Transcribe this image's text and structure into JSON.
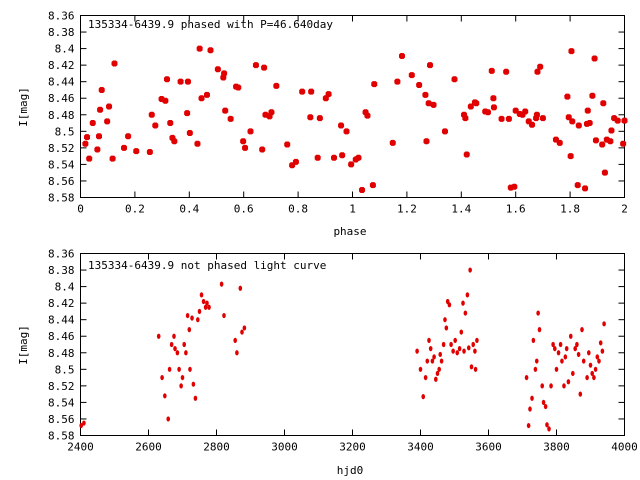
{
  "chart_data": [
    {
      "type": "scatter",
      "title": "135334-6439.9 phased with P=46.640day",
      "xlabel": "phase",
      "ylabel": "I[mag]",
      "xlim": [
        0,
        2
      ],
      "ylim": [
        8.58,
        8.36
      ],
      "y_inverted": true,
      "grid": false,
      "marker": "star",
      "color": "#e00000",
      "xticks": [
        "0",
        "0.2",
        "0.4",
        "0.6",
        "0.8",
        "1",
        "1.2",
        "1.4",
        "1.6",
        "1.8",
        "2"
      ],
      "yticks": [
        "8.36",
        "8.38",
        "8.4",
        "8.42",
        "8.44",
        "8.46",
        "8.48",
        "8.5",
        "8.52",
        "8.54",
        "8.56",
        "8.58"
      ],
      "points": [
        [
          0.018,
          8.515
        ],
        [
          0.024,
          8.507
        ],
        [
          0.032,
          8.533
        ],
        [
          0.045,
          8.49
        ],
        [
          0.062,
          8.522
        ],
        [
          0.068,
          8.506
        ],
        [
          0.072,
          8.474
        ],
        [
          0.078,
          8.45
        ],
        [
          0.098,
          8.488
        ],
        [
          0.105,
          8.47
        ],
        [
          0.118,
          8.533
        ],
        [
          0.125,
          8.418
        ],
        [
          0.16,
          8.52
        ],
        [
          0.175,
          8.506
        ],
        [
          0.205,
          8.524
        ],
        [
          0.255,
          8.525
        ],
        [
          0.262,
          8.48
        ],
        [
          0.275,
          8.493
        ],
        [
          0.298,
          8.461
        ],
        [
          0.312,
          8.463
        ],
        [
          0.318,
          8.437
        ],
        [
          0.33,
          8.49
        ],
        [
          0.338,
          8.508
        ],
        [
          0.345,
          8.512
        ],
        [
          0.368,
          8.44
        ],
        [
          0.395,
          8.44
        ],
        [
          0.392,
          8.478
        ],
        [
          0.402,
          8.502
        ],
        [
          0.43,
          8.515
        ],
        [
          0.438,
          8.4
        ],
        [
          0.445,
          8.46
        ],
        [
          0.465,
          8.456
        ],
        [
          0.478,
          8.402
        ],
        [
          0.505,
          8.425
        ],
        [
          0.525,
          8.435
        ],
        [
          0.532,
          8.475
        ],
        [
          0.528,
          8.43
        ],
        [
          0.552,
          8.485
        ],
        [
          0.572,
          8.446
        ],
        [
          0.58,
          8.447
        ],
        [
          0.598,
          8.512
        ],
        [
          0.605,
          8.52
        ],
        [
          0.625,
          8.5
        ],
        [
          0.645,
          8.42
        ],
        [
          0.668,
          8.522
        ],
        [
          0.675,
          8.423
        ],
        [
          0.68,
          8.48
        ],
        [
          0.695,
          8.482
        ],
        [
          0.702,
          8.477
        ],
        [
          0.72,
          8.445
        ],
        [
          0.76,
          8.516
        ],
        [
          0.778,
          8.541
        ],
        [
          0.792,
          8.537
        ],
        [
          0.815,
          8.452
        ],
        [
          0.845,
          8.483
        ],
        [
          0.848,
          8.452
        ],
        [
          0.872,
          8.532
        ],
        [
          0.88,
          8.484
        ],
        [
          0.902,
          8.46
        ],
        [
          0.912,
          8.455
        ],
        [
          0.932,
          8.532
        ],
        [
          0.958,
          8.493
        ],
        [
          0.962,
          8.529
        ],
        [
          0.978,
          8.5
        ],
        [
          0.995,
          8.54
        ],
        [
          1.012,
          8.534
        ],
        [
          1.022,
          8.532
        ],
        [
          1.035,
          8.571
        ],
        [
          1.048,
          8.477
        ],
        [
          1.055,
          8.481
        ],
        [
          1.075,
          8.565
        ],
        [
          1.08,
          8.443
        ],
        [
          1.148,
          8.514
        ],
        [
          1.165,
          8.44
        ],
        [
          1.182,
          8.409
        ],
        [
          1.218,
          8.432
        ],
        [
          1.245,
          8.444
        ],
        [
          1.268,
          8.456
        ],
        [
          1.272,
          8.512
        ],
        [
          1.28,
          8.466
        ],
        [
          1.285,
          8.42
        ],
        [
          1.298,
          8.468
        ],
        [
          1.34,
          8.5
        ],
        [
          1.375,
          8.437
        ],
        [
          1.41,
          8.48
        ],
        [
          1.415,
          8.484
        ],
        [
          1.42,
          8.528
        ],
        [
          1.435,
          8.47
        ],
        [
          1.45,
          8.465
        ],
        [
          1.455,
          8.466
        ],
        [
          1.488,
          8.476
        ],
        [
          1.498,
          8.477
        ],
        [
          1.512,
          8.427
        ],
        [
          1.518,
          8.46
        ],
        [
          1.52,
          8.471
        ],
        [
          1.548,
          8.485
        ],
        [
          1.565,
          8.428
        ],
        [
          1.575,
          8.485
        ],
        [
          1.582,
          8.568
        ],
        [
          1.595,
          8.567
        ],
        [
          1.6,
          8.475
        ],
        [
          1.615,
          8.479
        ],
        [
          1.625,
          8.48
        ],
        [
          1.635,
          8.476
        ],
        [
          1.648,
          8.488
        ],
        [
          1.66,
          8.492
        ],
        [
          1.675,
          8.484
        ],
        [
          1.678,
          8.48
        ],
        [
          1.68,
          8.428
        ],
        [
          1.69,
          8.422
        ],
        [
          1.7,
          8.484
        ],
        [
          1.748,
          8.51
        ],
        [
          1.762,
          8.514
        ],
        [
          1.79,
          8.458
        ],
        [
          1.795,
          8.483
        ],
        [
          1.802,
          8.53
        ],
        [
          1.805,
          8.403
        ],
        [
          1.808,
          8.488
        ],
        [
          1.828,
          8.565
        ],
        [
          1.832,
          8.493
        ],
        [
          1.855,
          8.569
        ],
        [
          1.862,
          8.491
        ],
        [
          1.865,
          8.475
        ],
        [
          1.872,
          8.49
        ],
        [
          1.882,
          8.457
        ],
        [
          1.89,
          8.412
        ],
        [
          1.895,
          8.511
        ],
        [
          1.918,
          8.516
        ],
        [
          1.922,
          8.466
        ],
        [
          1.928,
          8.55
        ],
        [
          1.935,
          8.51
        ],
        [
          1.948,
          8.512
        ],
        [
          1.952,
          8.499
        ],
        [
          1.962,
          8.484
        ],
        [
          1.975,
          8.487
        ],
        [
          1.995,
          8.515
        ],
        [
          2.0,
          8.487
        ]
      ]
    },
    {
      "type": "scatter",
      "title": "135334-6439.9 not phased light curve",
      "xlabel": "hjd0",
      "ylabel": "I[mag]",
      "xlim": [
        2400,
        4000
      ],
      "ylim": [
        8.58,
        8.36
      ],
      "y_inverted": true,
      "grid": false,
      "marker": "dot",
      "color": "#e00000",
      "xticks": [
        "2400",
        "2600",
        "2800",
        "3000",
        "3200",
        "3400",
        "3600",
        "3800",
        "4000"
      ],
      "yticks": [
        "8.36",
        "8.38",
        "8.4",
        "8.42",
        "8.44",
        "8.46",
        "8.48",
        "8.5",
        "8.52",
        "8.54",
        "8.56",
        "8.58"
      ],
      "points": [
        [
          2402,
          8.568
        ],
        [
          2410,
          8.565
        ],
        [
          2630,
          8.46
        ],
        [
          2640,
          8.51
        ],
        [
          2648,
          8.532
        ],
        [
          2658,
          8.56
        ],
        [
          2662,
          8.5
        ],
        [
          2668,
          8.47
        ],
        [
          2675,
          8.46
        ],
        [
          2678,
          8.475
        ],
        [
          2685,
          8.48
        ],
        [
          2690,
          8.5
        ],
        [
          2696,
          8.52
        ],
        [
          2700,
          8.51
        ],
        [
          2705,
          8.47
        ],
        [
          2710,
          8.48
        ],
        [
          2715,
          8.435
        ],
        [
          2720,
          8.452
        ],
        [
          2722,
          8.5
        ],
        [
          2728,
          8.438
        ],
        [
          2732,
          8.518
        ],
        [
          2738,
          8.535
        ],
        [
          2745,
          8.44
        ],
        [
          2750,
          8.43
        ],
        [
          2756,
          8.41
        ],
        [
          2762,
          8.418
        ],
        [
          2768,
          8.425
        ],
        [
          2772,
          8.42
        ],
        [
          2778,
          8.425
        ],
        [
          2815,
          8.397
        ],
        [
          2822,
          8.435
        ],
        [
          2855,
          8.465
        ],
        [
          2860,
          8.48
        ],
        [
          2870,
          8.402
        ],
        [
          2875,
          8.455
        ],
        [
          2882,
          8.45
        ],
        [
          3390,
          8.478
        ],
        [
          3400,
          8.5
        ],
        [
          3408,
          8.533
        ],
        [
          3415,
          8.51
        ],
        [
          3420,
          8.49
        ],
        [
          3425,
          8.465
        ],
        [
          3430,
          8.475
        ],
        [
          3435,
          8.49
        ],
        [
          3440,
          8.485
        ],
        [
          3445,
          8.512
        ],
        [
          3450,
          8.505
        ],
        [
          3455,
          8.5
        ],
        [
          3458,
          8.482
        ],
        [
          3462,
          8.49
        ],
        [
          3468,
          8.47
        ],
        [
          3472,
          8.44
        ],
        [
          3476,
          8.45
        ],
        [
          3480,
          8.418
        ],
        [
          3485,
          8.422
        ],
        [
          3490,
          8.47
        ],
        [
          3496,
          8.478
        ],
        [
          3502,
          8.465
        ],
        [
          3508,
          8.48
        ],
        [
          3515,
          8.475
        ],
        [
          3520,
          8.455
        ],
        [
          3525,
          8.42
        ],
        [
          3528,
          8.478
        ],
        [
          3532,
          8.432
        ],
        [
          3538,
          8.41
        ],
        [
          3542,
          8.474
        ],
        [
          3546,
          8.38
        ],
        [
          3550,
          8.497
        ],
        [
          3555,
          8.47
        ],
        [
          3560,
          8.478
        ],
        [
          3562,
          8.5
        ],
        [
          3566,
          8.465
        ],
        [
          3712,
          8.51
        ],
        [
          3718,
          8.568
        ],
        [
          3722,
          8.548
        ],
        [
          3728,
          8.535
        ],
        [
          3732,
          8.465
        ],
        [
          3738,
          8.5
        ],
        [
          3742,
          8.49
        ],
        [
          3746,
          8.432
        ],
        [
          3750,
          8.452
        ],
        [
          3758,
          8.52
        ],
        [
          3762,
          8.54
        ],
        [
          3768,
          8.545
        ],
        [
          3772,
          8.567
        ],
        [
          3778,
          8.572
        ],
        [
          3784,
          8.52
        ],
        [
          3790,
          8.47
        ],
        [
          3795,
          8.475
        ],
        [
          3800,
          8.5
        ],
        [
          3806,
          8.48
        ],
        [
          3812,
          8.47
        ],
        [
          3816,
          8.49
        ],
        [
          3822,
          8.52
        ],
        [
          3826,
          8.485
        ],
        [
          3830,
          8.475
        ],
        [
          3835,
          8.515
        ],
        [
          3842,
          8.46
        ],
        [
          3848,
          8.505
        ],
        [
          3855,
          8.475
        ],
        [
          3860,
          8.47
        ],
        [
          3865,
          8.482
        ],
        [
          3870,
          8.53
        ],
        [
          3875,
          8.452
        ],
        [
          3880,
          8.49
        ],
        [
          3890,
          8.51
        ],
        [
          3895,
          8.48
        ],
        [
          3900,
          8.495
        ],
        [
          3905,
          8.505
        ],
        [
          3910,
          8.51
        ],
        [
          3915,
          8.5
        ],
        [
          3920,
          8.485
        ],
        [
          3925,
          8.49
        ],
        [
          3930,
          8.468
        ],
        [
          3935,
          8.478
        ],
        [
          3940,
          8.445
        ]
      ]
    }
  ]
}
